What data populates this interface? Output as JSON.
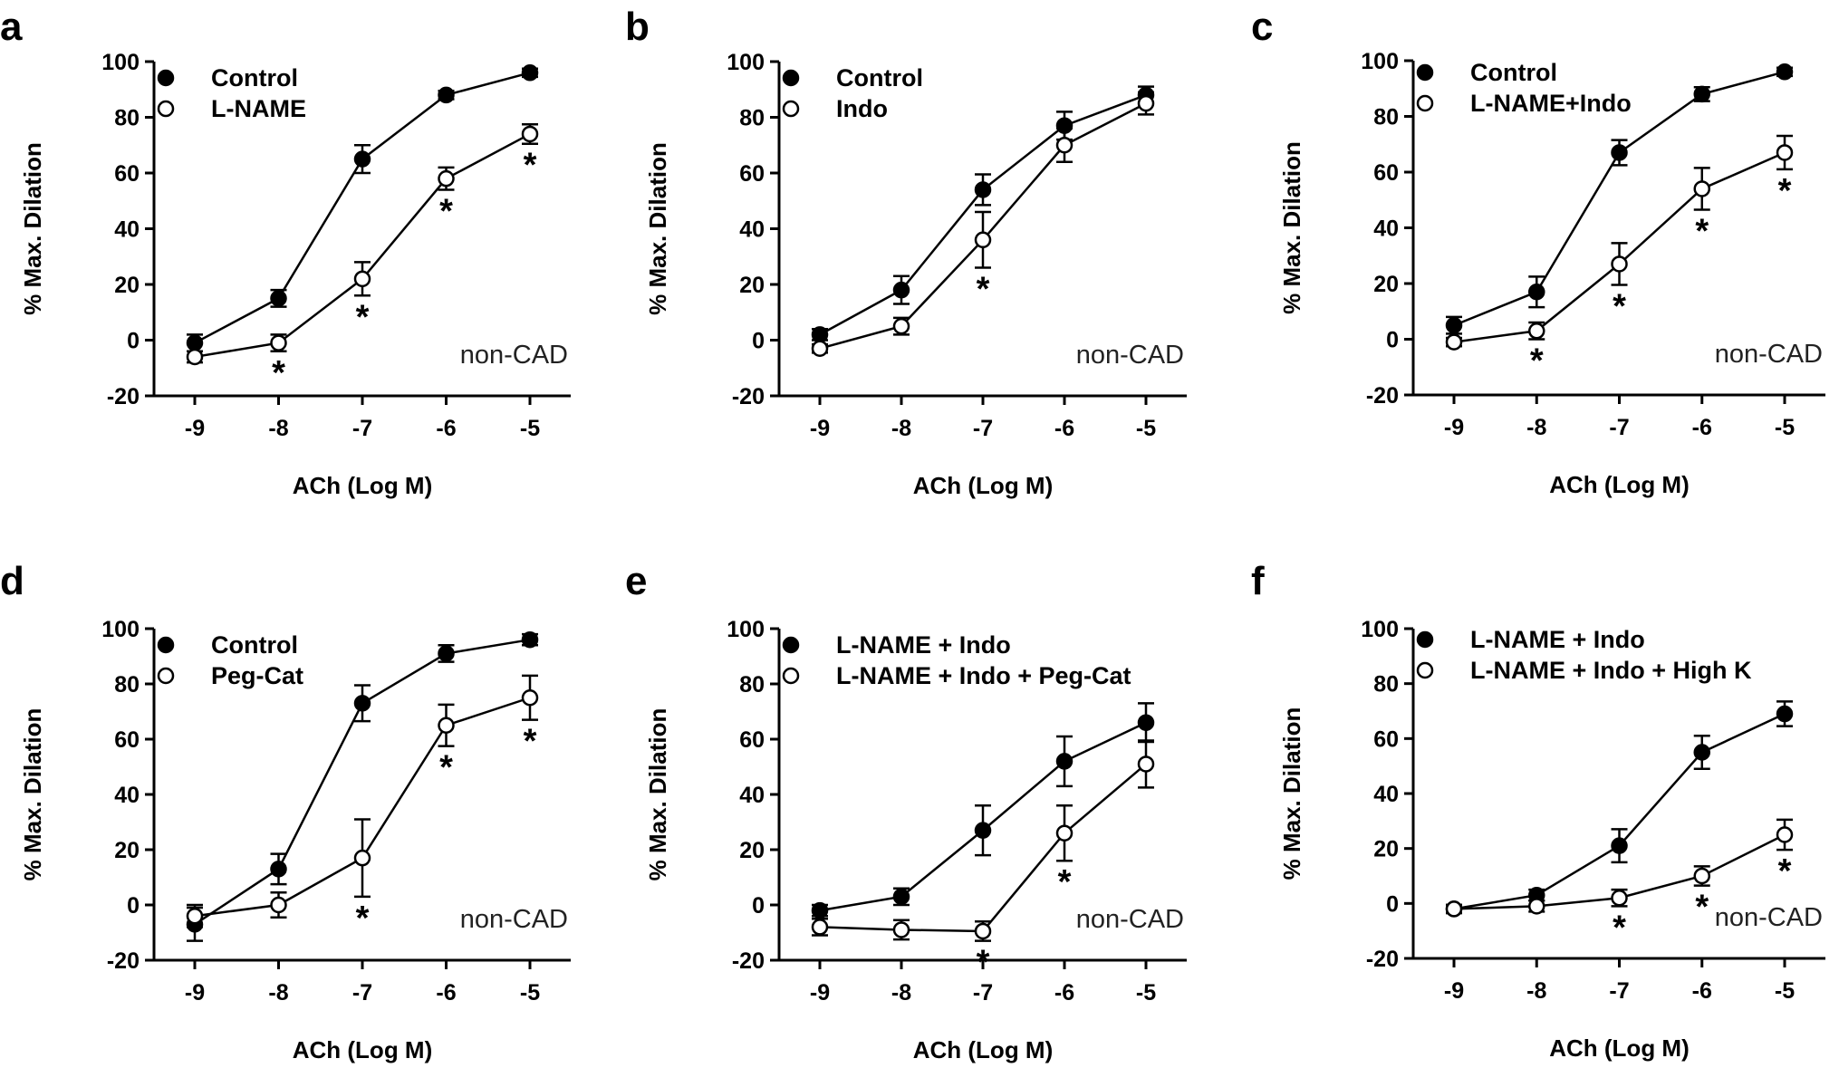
{
  "chart_data": [
    {
      "panel": "a",
      "type": "line",
      "x": [
        -9,
        -8,
        -7,
        -6,
        -5
      ],
      "xlabel": "ACh (Log M)",
      "ylabel": "% Max. Dilation",
      "ylim": [
        -20,
        100
      ],
      "yticks": [
        -20,
        0,
        20,
        40,
        60,
        80,
        100
      ],
      "annotation": "non-CAD",
      "star_symbol": "*",
      "series": [
        {
          "name": "Control",
          "marker": "filled",
          "values": [
            -1,
            15,
            65,
            88,
            96
          ],
          "errors": [
            3,
            3,
            5,
            1.5,
            1.5
          ],
          "stars": []
        },
        {
          "name": "L-NAME",
          "marker": "open",
          "values": [
            -6,
            -1,
            22,
            58,
            74
          ],
          "errors": [
            2,
            3,
            6,
            4,
            3.5
          ],
          "stars": [
            -8,
            -7,
            -6,
            -5
          ]
        }
      ]
    },
    {
      "panel": "b",
      "type": "line",
      "x": [
        -9,
        -8,
        -7,
        -6,
        -5
      ],
      "xlabel": "ACh (Log M)",
      "ylabel": "% Max. Dilation",
      "ylim": [
        -20,
        100
      ],
      "yticks": [
        -20,
        0,
        20,
        40,
        60,
        80,
        100
      ],
      "annotation": "non-CAD",
      "star_symbol": "*",
      "series": [
        {
          "name": "Control",
          "marker": "filled",
          "values": [
            2,
            18,
            54,
            77,
            88
          ],
          "errors": [
            2,
            5,
            5.5,
            5,
            3
          ],
          "stars": []
        },
        {
          "name": "Indo",
          "marker": "open",
          "values": [
            -3,
            5,
            36,
            70,
            85
          ],
          "errors": [
            1.5,
            3,
            10,
            6,
            4
          ],
          "stars": [
            -7
          ]
        }
      ]
    },
    {
      "panel": "c",
      "type": "line",
      "x": [
        -9,
        -8,
        -7,
        -6,
        -5
      ],
      "xlabel": "ACh (Log M)",
      "ylabel": "% Max. Dilation",
      "ylim": [
        -20,
        100
      ],
      "yticks": [
        -20,
        0,
        20,
        40,
        60,
        80,
        100
      ],
      "annotation": "non-CAD",
      "star_symbol": "*",
      "series": [
        {
          "name": "Control",
          "marker": "filled",
          "values": [
            5,
            17,
            67,
            88,
            96
          ],
          "errors": [
            3,
            5.5,
            4.5,
            2.5,
            1.5
          ],
          "stars": []
        },
        {
          "name": "L-NAME+Indo",
          "marker": "open",
          "values": [
            -1,
            3,
            27,
            54,
            67
          ],
          "errors": [
            1.5,
            3,
            7.5,
            7.5,
            6
          ],
          "stars": [
            -8,
            -7,
            -6,
            -5
          ]
        }
      ]
    },
    {
      "panel": "d",
      "type": "line",
      "x": [
        -9,
        -8,
        -7,
        -6,
        -5
      ],
      "xlabel": "ACh (Log M)",
      "ylabel": "% Max. Dilation",
      "ylim": [
        -20,
        100
      ],
      "yticks": [
        -20,
        0,
        20,
        40,
        60,
        80,
        100
      ],
      "annotation": "non-CAD",
      "star_symbol": "*",
      "series": [
        {
          "name": "Control",
          "marker": "filled",
          "values": [
            -7,
            13,
            73,
            91,
            96
          ],
          "errors": [
            6,
            5.5,
            6.5,
            3,
            2
          ],
          "stars": []
        },
        {
          "name": "Peg-Cat",
          "marker": "open",
          "values": [
            -4,
            0,
            17,
            65,
            75
          ],
          "errors": [
            4,
            4.5,
            14,
            7.5,
            8
          ],
          "stars": [
            -7,
            -6,
            -5
          ]
        }
      ]
    },
    {
      "panel": "e",
      "type": "line",
      "x": [
        -9,
        -8,
        -7,
        -6,
        -5
      ],
      "xlabel": "ACh (Log M)",
      "ylabel": "% Max. Dilation",
      "ylim": [
        -20,
        100
      ],
      "yticks": [
        -20,
        0,
        20,
        40,
        60,
        80,
        100
      ],
      "annotation": "non-CAD",
      "star_symbol": "*",
      "series": [
        {
          "name": "L-NAME + Indo",
          "marker": "filled",
          "values": [
            -2,
            3,
            27,
            52,
            66
          ],
          "errors": [
            2,
            3,
            9,
            9,
            7
          ],
          "stars": []
        },
        {
          "name": "L-NAME + Indo + Peg-Cat",
          "marker": "open",
          "values": [
            -8,
            -9,
            -9.5,
            26,
            51
          ],
          "errors": [
            3,
            3.5,
            3.5,
            10,
            8.5
          ],
          "stars": [
            -7,
            -6
          ]
        }
      ]
    },
    {
      "panel": "f",
      "type": "line",
      "x": [
        -9,
        -8,
        -7,
        -6,
        -5
      ],
      "xlabel": "ACh (Log M)",
      "ylabel": "% Max. Dilation",
      "ylim": [
        -20,
        100
      ],
      "yticks": [
        -20,
        0,
        20,
        40,
        60,
        80,
        100
      ],
      "annotation": "non-CAD",
      "star_symbol": "*",
      "series": [
        {
          "name": "L-NAME + Indo",
          "marker": "filled",
          "values": [
            -2,
            3,
            21,
            55,
            69
          ],
          "errors": [
            1.5,
            2,
            6,
            6,
            4.5
          ],
          "stars": []
        },
        {
          "name": "L-NAME + Indo + High K",
          "marker": "open",
          "values": [
            -2,
            -1,
            2,
            10,
            25
          ],
          "errors": [
            1.5,
            2,
            3,
            3.5,
            5.5
          ],
          "stars": [
            -7,
            -6,
            -5
          ]
        }
      ]
    }
  ]
}
